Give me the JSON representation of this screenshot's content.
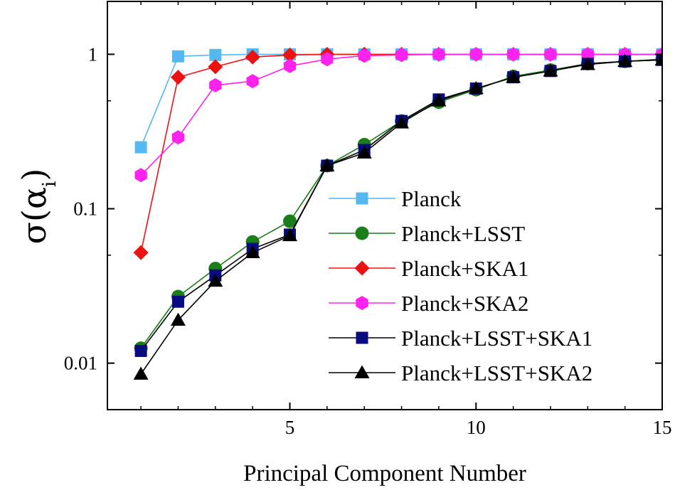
{
  "chart_data": {
    "type": "line",
    "xlabel": "Principal Component Number",
    "ylabel": "σ(α",
    "ylabel_subscript": "i",
    "ylabel_close": ")",
    "yscale": "log",
    "xlim": [
      0.1,
      15
    ],
    "ylim": [
      0.005,
      2.2
    ],
    "xticks": [
      5,
      10,
      15
    ],
    "xtick_labels": [
      "5",
      "10",
      "15"
    ],
    "yticks": [
      0.01,
      0.1,
      1
    ],
    "ytick_labels": [
      "0.01",
      "0.1",
      "1"
    ],
    "grid": false,
    "legend_position": "lower-right",
    "x": [
      1,
      2,
      3,
      4,
      5,
      6,
      7,
      8,
      9,
      10,
      11,
      12,
      13,
      14,
      15
    ],
    "series": [
      {
        "name": "Planck",
        "color": "#55b8f0",
        "marker": "square",
        "values": [
          0.25,
          0.97,
          0.99,
          1.0,
          1.0,
          1.0,
          1.0,
          1.0,
          1.0,
          1.0,
          1.0,
          1.0,
          1.0,
          1.0,
          1.0
        ]
      },
      {
        "name": "Planck+LSST",
        "color": "#1a7f1a",
        "marker": "circle",
        "values": [
          0.0125,
          0.027,
          0.041,
          0.061,
          0.083,
          0.19,
          0.26,
          0.37,
          0.49,
          0.59,
          0.72,
          0.79,
          0.87,
          0.9,
          0.93
        ]
      },
      {
        "name": "Planck+SKA1",
        "color": "#ee1111",
        "marker": "diamond",
        "values": [
          0.052,
          0.71,
          0.83,
          0.96,
          0.99,
          1.0,
          1.0,
          1.0,
          1.0,
          1.0,
          1.0,
          1.0,
          1.0,
          1.0,
          1.0
        ]
      },
      {
        "name": "Planck+SKA2",
        "color": "#ff22ee",
        "marker": "hexagon",
        "values": [
          0.165,
          0.29,
          0.63,
          0.67,
          0.84,
          0.93,
          0.98,
          0.99,
          1.0,
          1.0,
          1.0,
          1.0,
          1.0,
          1.0,
          1.0
        ]
      },
      {
        "name": "Planck+LSST+SKA1",
        "color": "#0a0a80",
        "line_color": "#000000",
        "marker": "square",
        "values": [
          0.012,
          0.025,
          0.037,
          0.055,
          0.068,
          0.19,
          0.24,
          0.37,
          0.51,
          0.6,
          0.71,
          0.78,
          0.87,
          0.9,
          0.92
        ]
      },
      {
        "name": "Planck+LSST+SKA2",
        "color": "#000000",
        "marker": "triangle",
        "values": [
          0.0085,
          0.019,
          0.034,
          0.052,
          0.067,
          0.19,
          0.23,
          0.36,
          0.5,
          0.6,
          0.71,
          0.78,
          0.86,
          0.9,
          0.92
        ]
      }
    ]
  }
}
